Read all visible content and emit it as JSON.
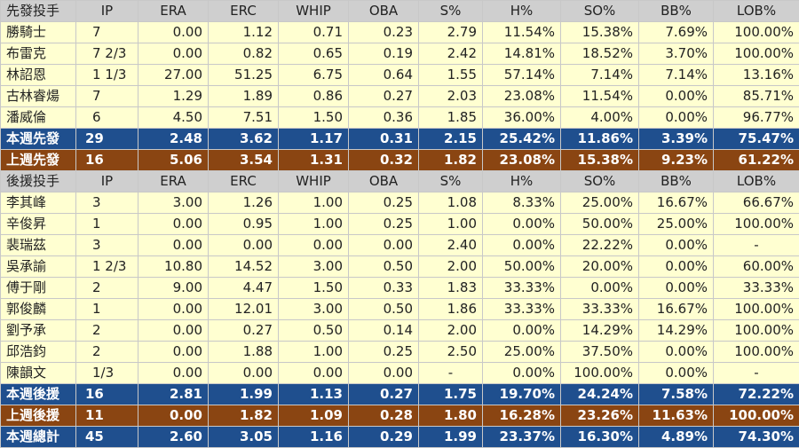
{
  "columns": [
    "IP",
    "ERA",
    "ERC",
    "WHIP",
    "OBA",
    "S%",
    "H%",
    "SO%",
    "BB%",
    "LOB%"
  ],
  "starters": {
    "header": "先發投手",
    "rows": [
      {
        "name": "勝騎士",
        "stats": [
          "7",
          "0.00",
          "1.12",
          "0.71",
          "0.23",
          "2.79",
          "11.54%",
          "15.38%",
          "7.69%",
          "100.00%"
        ]
      },
      {
        "name": "布雷克",
        "stats": [
          "7 2/3",
          "0.00",
          "0.82",
          "0.65",
          "0.19",
          "2.42",
          "14.81%",
          "18.52%",
          "3.70%",
          "100.00%"
        ]
      },
      {
        "name": "林詔恩",
        "stats": [
          "1 1/3",
          "27.00",
          "51.25",
          "6.75",
          "0.64",
          "1.55",
          "57.14%",
          "7.14%",
          "7.14%",
          "13.16%"
        ]
      },
      {
        "name": "古林睿煬",
        "stats": [
          "7",
          "1.29",
          "1.89",
          "0.86",
          "0.27",
          "2.03",
          "23.08%",
          "11.54%",
          "0.00%",
          "85.71%"
        ]
      },
      {
        "name": "潘威倫",
        "stats": [
          "6",
          "4.50",
          "7.51",
          "1.50",
          "0.36",
          "1.85",
          "36.00%",
          "4.00%",
          "0.00%",
          "96.77%"
        ]
      }
    ],
    "this_week": {
      "name": "本週先發",
      "stats": [
        "29",
        "2.48",
        "3.62",
        "1.17",
        "0.31",
        "2.15",
        "25.42%",
        "11.86%",
        "3.39%",
        "75.47%"
      ]
    },
    "last_week": {
      "name": "上週先發",
      "stats": [
        "16",
        "5.06",
        "3.54",
        "1.31",
        "0.32",
        "1.82",
        "23.08%",
        "15.38%",
        "9.23%",
        "61.22%"
      ]
    }
  },
  "relievers": {
    "header": "後援投手",
    "rows": [
      {
        "name": "李其峰",
        "stats": [
          "3",
          "3.00",
          "1.26",
          "1.00",
          "0.25",
          "1.08",
          "8.33%",
          "25.00%",
          "16.67%",
          "66.67%"
        ]
      },
      {
        "name": "辛俊昇",
        "stats": [
          "1",
          "0.00",
          "0.95",
          "1.00",
          "0.25",
          "1.00",
          "0.00%",
          "50.00%",
          "25.00%",
          "100.00%"
        ]
      },
      {
        "name": "裴瑞茲",
        "stats": [
          "3",
          "0.00",
          "0.00",
          "0.00",
          "0.00",
          "2.40",
          "0.00%",
          "22.22%",
          "0.00%",
          "-"
        ]
      },
      {
        "name": "吳承諭",
        "stats": [
          "1 2/3",
          "10.80",
          "14.52",
          "3.00",
          "0.50",
          "2.00",
          "50.00%",
          "20.00%",
          "0.00%",
          "60.00%"
        ]
      },
      {
        "name": "傅于剛",
        "stats": [
          "2",
          "9.00",
          "4.47",
          "1.50",
          "0.33",
          "1.83",
          "33.33%",
          "0.00%",
          "0.00%",
          "33.33%"
        ]
      },
      {
        "name": "郭俊麟",
        "stats": [
          "1",
          "0.00",
          "12.01",
          "3.00",
          "0.50",
          "1.86",
          "33.33%",
          "33.33%",
          "16.67%",
          "100.00%"
        ]
      },
      {
        "name": "劉予承",
        "stats": [
          "2",
          "0.00",
          "0.27",
          "0.50",
          "0.14",
          "2.00",
          "0.00%",
          "14.29%",
          "14.29%",
          "100.00%"
        ]
      },
      {
        "name": "邱浩鈞",
        "stats": [
          "2",
          "0.00",
          "1.88",
          "1.00",
          "0.25",
          "2.50",
          "25.00%",
          "37.50%",
          "0.00%",
          "100.00%"
        ]
      },
      {
        "name": "陳韻文",
        "stats": [
          "1/3",
          "0.00",
          "0.00",
          "0.00",
          "0.00",
          "-",
          "0.00%",
          "100.00%",
          "0.00%",
          "-"
        ]
      }
    ],
    "this_week": {
      "name": "本週後援",
      "stats": [
        "16",
        "2.81",
        "1.99",
        "1.13",
        "0.27",
        "1.75",
        "19.70%",
        "24.24%",
        "7.58%",
        "72.22%"
      ]
    },
    "last_week": {
      "name": "上週後援",
      "stats": [
        "11",
        "0.00",
        "1.82",
        "1.09",
        "0.28",
        "1.80",
        "16.28%",
        "23.26%",
        "11.63%",
        "100.00%"
      ]
    }
  },
  "total": {
    "name": "本週總計",
    "stats": [
      "45",
      "2.60",
      "3.05",
      "1.16",
      "0.29",
      "1.99",
      "23.37%",
      "16.30%",
      "4.89%",
      "74.30%"
    ]
  },
  "colors": {
    "header_bg": "#cfcfcf",
    "player_bg": "#ffffd1",
    "this_week_bg": "#1f4f8e",
    "last_week_bg": "#8a4512"
  }
}
